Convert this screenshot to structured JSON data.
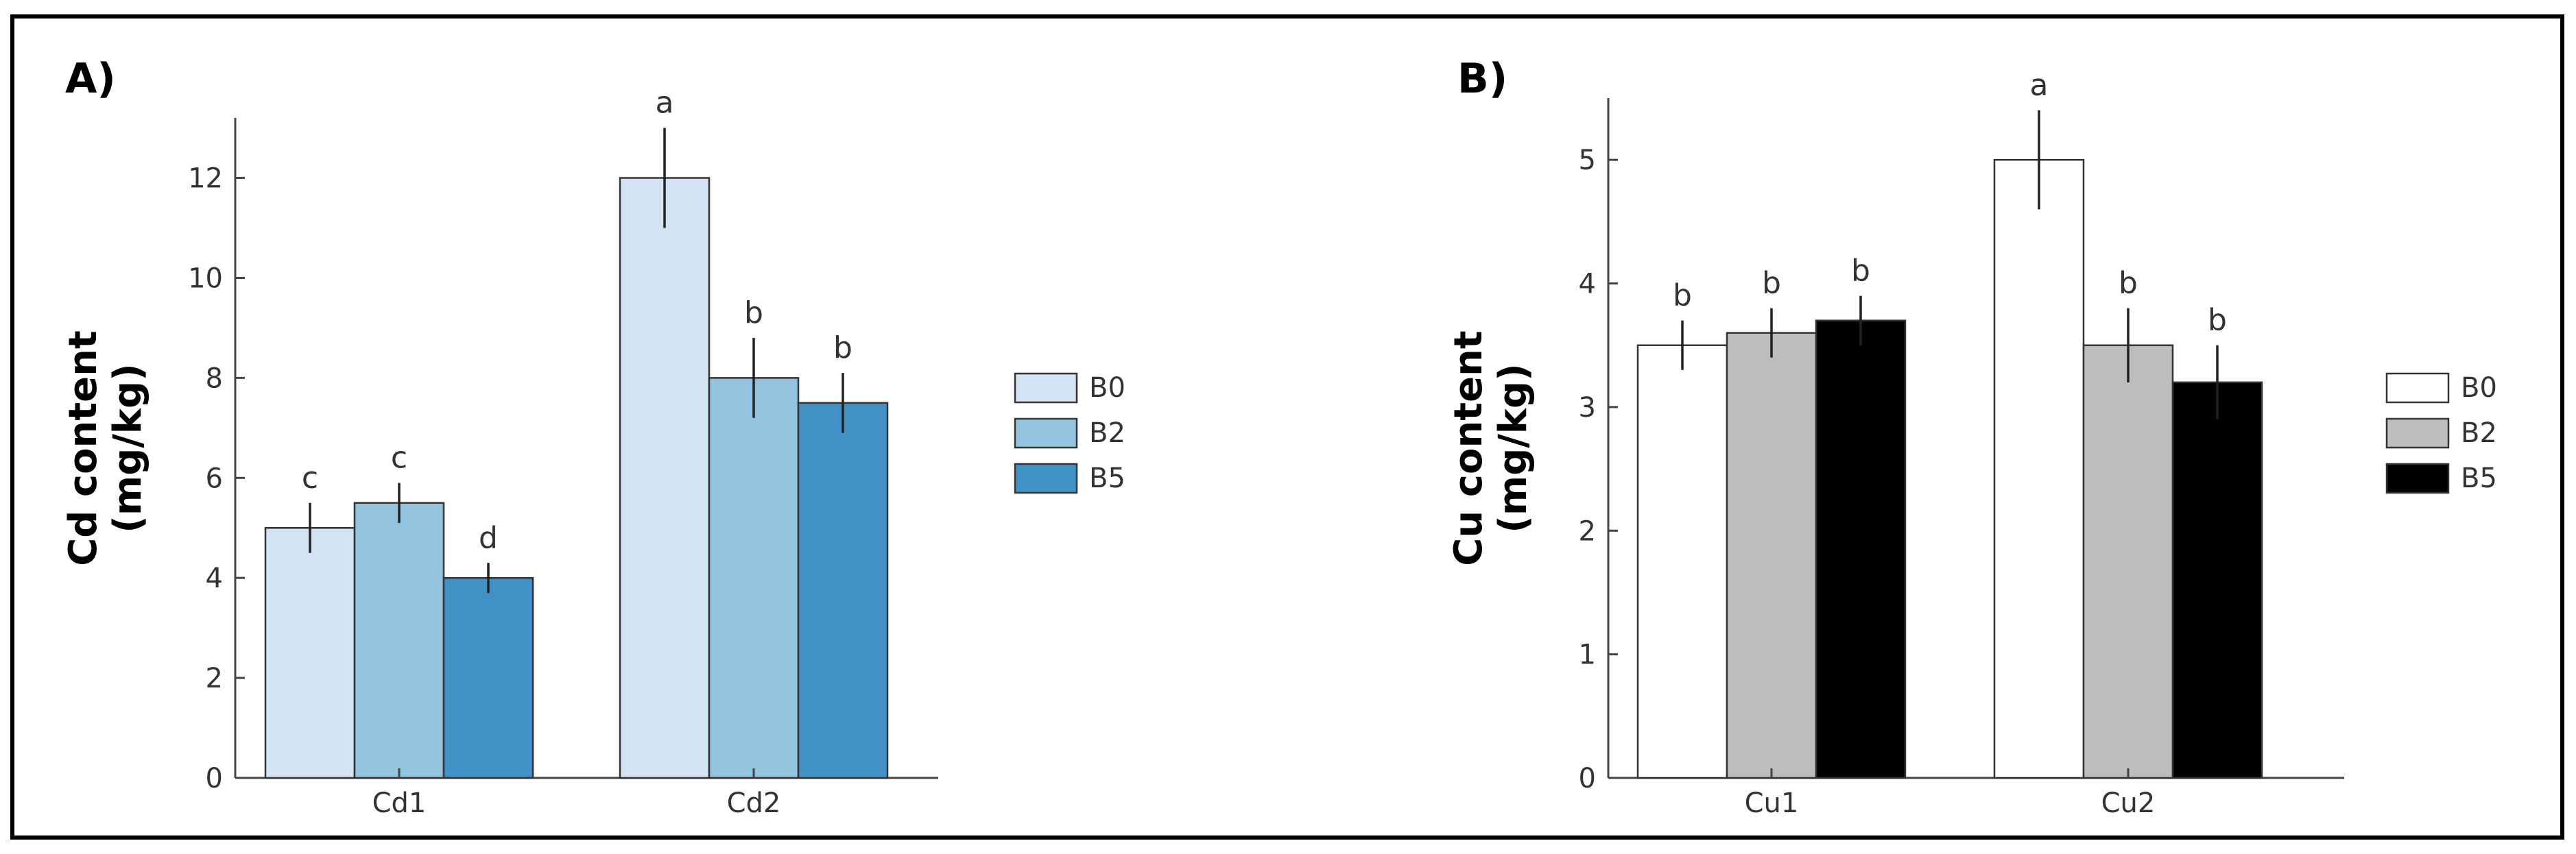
{
  "chart_data": [
    {
      "type": "bar",
      "panel_label": "A)",
      "ylabel_line1": "Cd content",
      "ylabel_line2": "(mg/kg)",
      "xlabel": "",
      "categories": [
        "Cd1",
        "Cd2"
      ],
      "ylim": [
        0,
        13.2
      ],
      "yticks": [
        0,
        2,
        4,
        6,
        8,
        10,
        12
      ],
      "legend_position": "right",
      "series": [
        {
          "name": "B0",
          "color": "#d2e3f3",
          "values": [
            5.0,
            12.0
          ],
          "errors": [
            0.5,
            1.0
          ],
          "letters": [
            "c",
            "a"
          ]
        },
        {
          "name": "B2",
          "color": "#92c3df",
          "values": [
            5.5,
            8.0
          ],
          "errors": [
            0.4,
            0.8
          ],
          "letters": [
            "c",
            "b"
          ]
        },
        {
          "name": "B5",
          "color": "#4291c6",
          "values": [
            4.0,
            7.5
          ],
          "errors": [
            0.3,
            0.6
          ],
          "letters": [
            "d",
            "b"
          ]
        }
      ]
    },
    {
      "type": "bar",
      "panel_label": "B)",
      "ylabel_line1": "Cu content",
      "ylabel_line2": "(mg/kg)",
      "xlabel": "",
      "categories": [
        "Cu1",
        "Cu2"
      ],
      "ylim": [
        0,
        5.5
      ],
      "yticks": [
        0,
        1,
        2,
        3,
        4,
        5
      ],
      "legend_position": "right",
      "series": [
        {
          "name": "B0",
          "color": "#ffffff",
          "values": [
            3.5,
            5.0
          ],
          "errors": [
            0.2,
            0.4
          ],
          "letters": [
            "b",
            "a"
          ]
        },
        {
          "name": "B2",
          "color": "#bdbdbd",
          "values": [
            3.6,
            3.5
          ],
          "errors": [
            0.2,
            0.3
          ],
          "letters": [
            "b",
            "b"
          ]
        },
        {
          "name": "B5",
          "color": "#000000",
          "values": [
            3.7,
            3.2
          ],
          "errors": [
            0.2,
            0.3
          ],
          "letters": [
            "b",
            "b"
          ]
        }
      ]
    }
  ]
}
